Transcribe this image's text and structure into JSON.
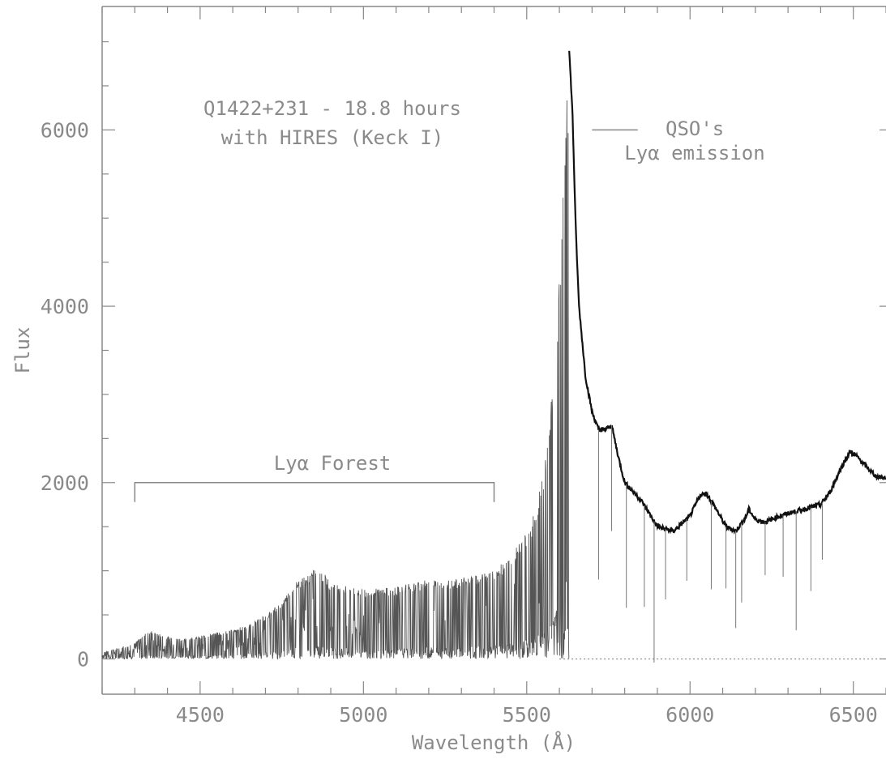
{
  "chart_data": {
    "type": "line",
    "xlabel": "Wavelength (Å)",
    "ylabel": "Flux",
    "xlim": [
      4200,
      6600
    ],
    "ylim": [
      -400,
      7400
    ],
    "x_ticks": [
      "4500",
      "5000",
      "5500",
      "6000",
      "6500"
    ],
    "y_ticks": [
      "0",
      "2000",
      "4000",
      "6000"
    ],
    "x_tick_values": [
      4500,
      5000,
      5500,
      6000,
      6500
    ],
    "y_tick_values": [
      0,
      2000,
      4000,
      6000
    ],
    "grid": false,
    "annotations": {
      "title_line1": "Q1422+231 - 18.8 hours",
      "title_line2": "with HIRES (Keck I)",
      "qso_line1": "QSO's",
      "qso_line2": "Lyα emission",
      "forest_label": "Lyα Forest"
    },
    "forest_bracket": {
      "x_start": 4300,
      "x_end": 5400,
      "y": 2000
    },
    "qso_pointer": {
      "x_start": 5700,
      "x_end": 5840,
      "y": 6000
    },
    "continuum": {
      "x": [
        4200,
        4250,
        4300,
        4340,
        4400,
        4450,
        4500,
        4550,
        4600,
        4650,
        4700,
        4750,
        4790,
        4830,
        4860,
        4900,
        4950,
        5000,
        5050,
        5100,
        5150,
        5200,
        5250,
        5300,
        5350,
        5400,
        5430,
        5460,
        5490,
        5510,
        5530,
        5550,
        5570,
        5585,
        5600,
        5610,
        5620,
        5630,
        5640,
        5650,
        5660,
        5680,
        5700,
        5720,
        5740,
        5760,
        5780,
        5800,
        5850,
        5900,
        5950,
        6000,
        6030,
        6050,
        6080,
        6110,
        6140,
        6170,
        6180,
        6200,
        6230,
        6260,
        6300,
        6350,
        6400,
        6430,
        6460,
        6490,
        6510,
        6540,
        6570,
        6600
      ],
      "flux": [
        80,
        120,
        180,
        330,
        250,
        230,
        260,
        300,
        330,
        400,
        500,
        650,
        880,
        950,
        1060,
        880,
        820,
        790,
        800,
        820,
        860,
        900,
        900,
        920,
        950,
        1000,
        1100,
        1220,
        1380,
        1500,
        1750,
        2100,
        2700,
        3400,
        4300,
        5200,
        6100,
        6900,
        6200,
        4900,
        4000,
        3200,
        2800,
        2600,
        2600,
        2650,
        2300,
        2000,
        1800,
        1500,
        1450,
        1620,
        1850,
        1880,
        1700,
        1500,
        1450,
        1600,
        1700,
        1580,
        1550,
        1600,
        1650,
        1700,
        1750,
        1900,
        2150,
        2350,
        2300,
        2180,
        2070,
        2050
      ]
    },
    "absorption_lines": [
      {
        "x": 5720,
        "depth": 1700
      },
      {
        "x": 5760,
        "depth": 1200
      },
      {
        "x": 5805,
        "depth": 1400
      },
      {
        "x": 5860,
        "depth": 1150
      },
      {
        "x": 5890,
        "depth": 1600
      },
      {
        "x": 5925,
        "depth": 800
      },
      {
        "x": 5990,
        "depth": 700
      },
      {
        "x": 6065,
        "depth": 1000
      },
      {
        "x": 6110,
        "depth": 700
      },
      {
        "x": 6140,
        "depth": 1100
      },
      {
        "x": 6158,
        "depth": 900
      },
      {
        "x": 6230,
        "depth": 600
      },
      {
        "x": 6285,
        "depth": 700
      },
      {
        "x": 6325,
        "depth": 1350
      },
      {
        "x": 6370,
        "depth": 950
      },
      {
        "x": 6405,
        "depth": 650
      }
    ]
  }
}
